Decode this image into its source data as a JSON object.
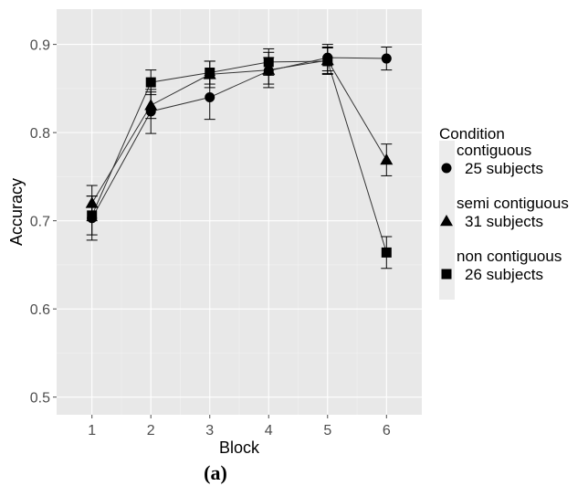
{
  "chart_data": {
    "type": "line",
    "xlabel": "Block",
    "ylabel": "Accuracy",
    "x": [
      1,
      2,
      3,
      4,
      5,
      6
    ],
    "xlim": [
      0.4,
      6.6
    ],
    "ylim": [
      0.48,
      0.94
    ],
    "yticks": [
      0.5,
      0.6,
      0.7,
      0.8,
      0.9
    ],
    "ytick_labels": [
      "0.5",
      "0.6",
      "0.7",
      "0.8",
      "0.9"
    ],
    "xtick_labels": [
      "1",
      "2",
      "3",
      "4",
      "5",
      "6"
    ],
    "grid": true,
    "legend_position": "right",
    "legend_title": "Condition",
    "series": [
      {
        "name": "contiguous",
        "label_line1": "contiguous",
        "label_line2": "25 subjects",
        "marker": "circle",
        "values": [
          0.703,
          0.824,
          0.84,
          0.87,
          0.885,
          0.884
        ],
        "err": [
          0.025,
          0.025,
          0.025,
          0.015,
          0.015,
          0.013
        ]
      },
      {
        "name": "semi contiguous",
        "label_line1": "semi contiguous",
        "label_line2": "31 subjects",
        "marker": "triangle",
        "values": [
          0.72,
          0.831,
          0.866,
          0.871,
          0.882,
          0.769
        ],
        "err": [
          0.02,
          0.015,
          0.015,
          0.02,
          0.015,
          0.018
        ]
      },
      {
        "name": "non contiguous",
        "label_line1": "non contiguous",
        "label_line2": "26 subjects",
        "marker": "square",
        "values": [
          0.706,
          0.857,
          0.868,
          0.88,
          0.881,
          0.664
        ],
        "err": [
          0.022,
          0.014,
          0.013,
          0.015,
          0.015,
          0.018
        ]
      }
    ]
  },
  "caption": "(a)"
}
